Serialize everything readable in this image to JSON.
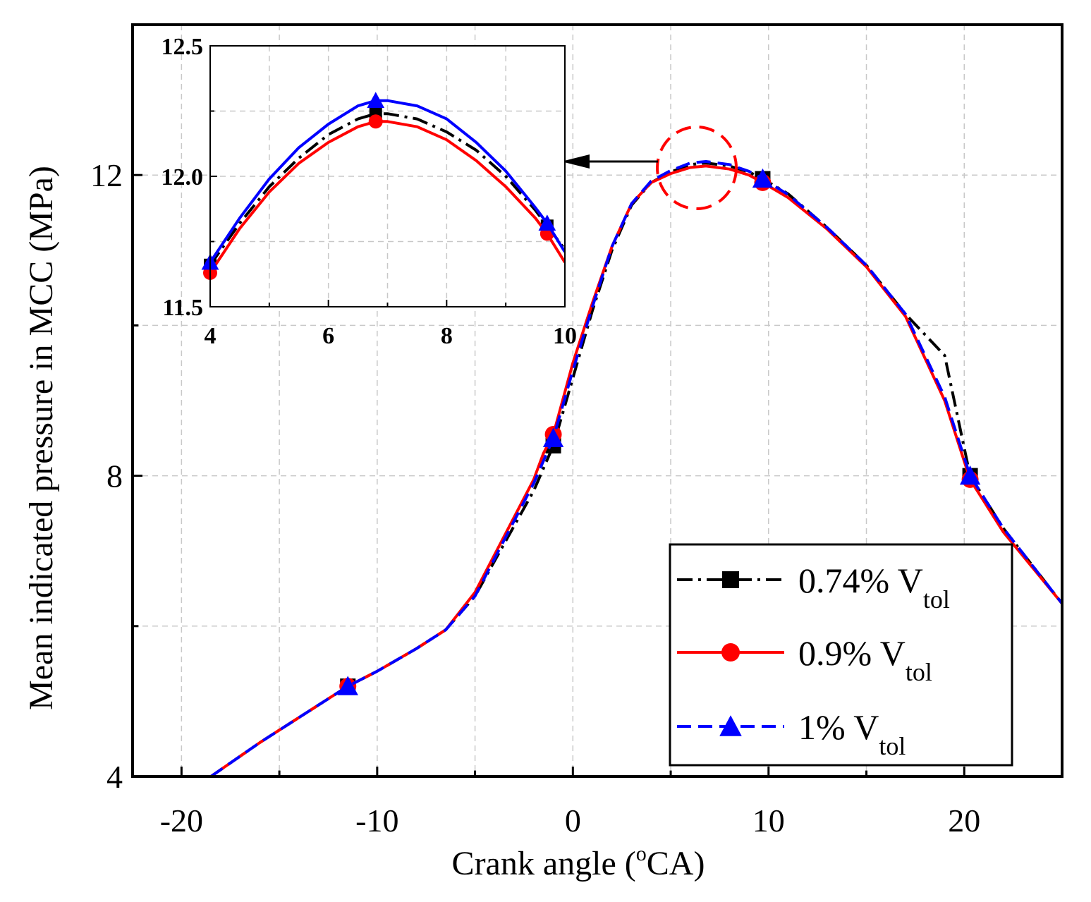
{
  "chart_data": [
    {
      "type": "line",
      "xlabel": "Crank angle (",
      "xlabel_sup": "o",
      "xlabel_tail": "CA)",
      "ylabel": "Mean indicated pressure in MCC (MPa)",
      "xlim": [
        -22.5,
        25
      ],
      "ylim": [
        4,
        14
      ],
      "xticks": [
        -20,
        -10,
        0,
        10,
        20
      ],
      "xtick_labels": [
        "-20",
        "-10",
        "0",
        "10",
        "20"
      ],
      "yticks": [
        4,
        8,
        12
      ],
      "ytick_labels": [
        "4",
        "8",
        "12"
      ],
      "grid": true,
      "legend_position": "bottom-right",
      "series": [
        {
          "name": "0.74% V",
          "name_sub": "tol",
          "color": "#000000",
          "dash": "dash-dot",
          "marker": "square",
          "points": [
            [
              -18.5,
              4
            ],
            [
              -16,
              4.45
            ],
            [
              -13,
              4.95
            ],
            [
              -11.5,
              5.2
            ],
            [
              -10,
              5.4
            ],
            [
              -8,
              5.7
            ],
            [
              -6.5,
              5.95
            ],
            [
              -5,
              6.4
            ],
            [
              -3.5,
              7.1
            ],
            [
              -2,
              7.8
            ],
            [
              -1.5,
              8.1
            ],
            [
              -1,
              8.4
            ],
            [
              0,
              9.3
            ],
            [
              1,
              10.2
            ],
            [
              2,
              11.0
            ],
            [
              3,
              11.6
            ],
            [
              4,
              11.9
            ],
            [
              5,
              12.04
            ],
            [
              6,
              12.14
            ],
            [
              6.8,
              12.16
            ],
            [
              8,
              12.12
            ],
            [
              9,
              12.04
            ],
            [
              9.7,
              11.95
            ],
            [
              11,
              11.75
            ],
            [
              13,
              11.3
            ],
            [
              15,
              10.8
            ],
            [
              17,
              10.15
            ],
            [
              19,
              9.6
            ],
            [
              20.3,
              8.0
            ],
            [
              22,
              7.3
            ],
            [
              25,
              6.3
            ]
          ],
          "marker_x": [
            -11.5,
            -1,
            9.7,
            20.3
          ]
        },
        {
          "name": "0.9% V",
          "name_sub": "tol",
          "color": "#ff0000",
          "dash": "solid",
          "marker": "circle",
          "points": [
            [
              -18.5,
              4
            ],
            [
              -16,
              4.45
            ],
            [
              -13,
              4.95
            ],
            [
              -11.5,
              5.2
            ],
            [
              -10,
              5.4
            ],
            [
              -8,
              5.7
            ],
            [
              -6.5,
              5.95
            ],
            [
              -5,
              6.45
            ],
            [
              -3.5,
              7.2
            ],
            [
              -2,
              7.95
            ],
            [
              -1.5,
              8.3
            ],
            [
              -1,
              8.55
            ],
            [
              0,
              9.5
            ],
            [
              1,
              10.3
            ],
            [
              2,
              11.05
            ],
            [
              3,
              11.62
            ],
            [
              4,
              11.9
            ],
            [
              5,
              12.02
            ],
            [
              6,
              12.1
            ],
            [
              6.8,
              12.12
            ],
            [
              8,
              12.08
            ],
            [
              9,
              12.0
            ],
            [
              9.7,
              11.9
            ],
            [
              11,
              11.7
            ],
            [
              13,
              11.28
            ],
            [
              15,
              10.78
            ],
            [
              17,
              10.12
            ],
            [
              19,
              9.0
            ],
            [
              20.3,
              7.95
            ],
            [
              22,
              7.25
            ],
            [
              25,
              6.3
            ]
          ],
          "marker_x": [
            -11.5,
            -1,
            9.7,
            20.3
          ]
        },
        {
          "name": "1% V",
          "name_sub": "tol",
          "color": "#0000ff",
          "dash": "dash",
          "marker": "triangle",
          "points": [
            [
              -18.5,
              4
            ],
            [
              -16,
              4.45
            ],
            [
              -13,
              4.95
            ],
            [
              -11.5,
              5.2
            ],
            [
              -10,
              5.4
            ],
            [
              -8,
              5.7
            ],
            [
              -6.5,
              5.95
            ],
            [
              -5,
              6.4
            ],
            [
              -3.5,
              7.15
            ],
            [
              -2,
              7.9
            ],
            [
              -1.5,
              8.2
            ],
            [
              -1,
              8.5
            ],
            [
              0,
              9.4
            ],
            [
              1,
              10.25
            ],
            [
              2,
              11.05
            ],
            [
              3,
              11.62
            ],
            [
              4,
              11.92
            ],
            [
              5,
              12.06
            ],
            [
              6,
              12.16
            ],
            [
              6.8,
              12.18
            ],
            [
              8,
              12.14
            ],
            [
              9,
              12.05
            ],
            [
              9.7,
              11.95
            ],
            [
              11,
              11.74
            ],
            [
              13,
              11.3
            ],
            [
              15,
              10.8
            ],
            [
              17,
              10.15
            ],
            [
              19,
              9.05
            ],
            [
              20.3,
              8.0
            ],
            [
              22,
              7.3
            ],
            [
              25,
              6.3
            ]
          ],
          "marker_x": [
            -11.5,
            -1,
            9.7,
            20.3
          ]
        }
      ]
    },
    {
      "type": "line",
      "role": "inset",
      "xlim": [
        4,
        10
      ],
      "ylim": [
        11.5,
        12.5
      ],
      "xticks": [
        4,
        6,
        8,
        10
      ],
      "xtick_labels": [
        "4",
        "6",
        "8",
        "10"
      ],
      "yticks": [
        11.5,
        12.0,
        12.5
      ],
      "ytick_labels": [
        "11.5",
        "12.0",
        "12.5"
      ],
      "grid": true,
      "series": [
        {
          "name": "0.74% V",
          "name_sub": "tol",
          "color": "#000000",
          "dash": "dash-dot",
          "marker": "square",
          "points": [
            [
              4,
              11.66
            ],
            [
              4.5,
              11.82
            ],
            [
              5,
              11.96
            ],
            [
              5.5,
              12.07
            ],
            [
              6,
              12.16
            ],
            [
              6.5,
              12.22
            ],
            [
              6.8,
              12.24
            ],
            [
              7,
              12.24
            ],
            [
              7.5,
              12.22
            ],
            [
              8,
              12.17
            ],
            [
              8.5,
              12.1
            ],
            [
              9,
              12.0
            ],
            [
              9.5,
              11.87
            ],
            [
              9.7,
              11.81
            ],
            [
              10,
              11.72
            ]
          ],
          "marker_x": [
            4,
            6.8,
            9.7
          ]
        },
        {
          "name": "0.9% V",
          "name_sub": "tol",
          "color": "#ff0000",
          "dash": "solid",
          "marker": "circle",
          "points": [
            [
              4,
              11.63
            ],
            [
              4.5,
              11.8
            ],
            [
              5,
              11.94
            ],
            [
              5.5,
              12.05
            ],
            [
              6,
              12.13
            ],
            [
              6.5,
              12.19
            ],
            [
              6.8,
              12.21
            ],
            [
              7,
              12.21
            ],
            [
              7.5,
              12.19
            ],
            [
              8,
              12.14
            ],
            [
              8.5,
              12.06
            ],
            [
              9,
              11.96
            ],
            [
              9.5,
              11.84
            ],
            [
              9.7,
              11.78
            ],
            [
              10,
              11.67
            ]
          ],
          "marker_x": [
            4,
            6.8,
            9.7
          ]
        },
        {
          "name": "1% V",
          "name_sub": "tol",
          "color": "#0000ff",
          "dash": "solid",
          "marker": "triangle",
          "points": [
            [
              4,
              11.67
            ],
            [
              4.5,
              11.84
            ],
            [
              5,
              11.99
            ],
            [
              5.5,
              12.11
            ],
            [
              6,
              12.2
            ],
            [
              6.5,
              12.27
            ],
            [
              6.8,
              12.29
            ],
            [
              7,
              12.29
            ],
            [
              7.5,
              12.27
            ],
            [
              8,
              12.22
            ],
            [
              8.5,
              12.13
            ],
            [
              9,
              12.02
            ],
            [
              9.5,
              11.88
            ],
            [
              9.7,
              11.82
            ],
            [
              10,
              11.71
            ]
          ],
          "marker_x": [
            4,
            6.8,
            9.7
          ]
        }
      ]
    }
  ]
}
